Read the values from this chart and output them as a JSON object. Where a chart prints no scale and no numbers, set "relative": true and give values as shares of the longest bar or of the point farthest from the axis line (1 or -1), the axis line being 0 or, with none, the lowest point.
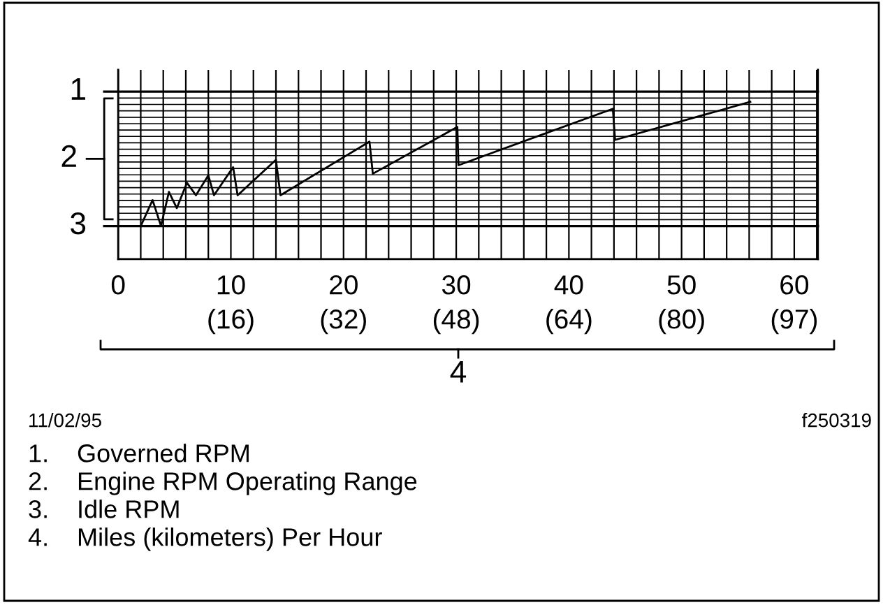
{
  "chart_data": {
    "type": "line",
    "relative": true,
    "color": "#000000",
    "grid": true,
    "marker": "none",
    "line_style": "solid",
    "x": [
      2,
      3.05,
      3.8,
      4.5,
      5.2,
      6.1,
      6.9,
      8.0,
      8.5,
      10.2,
      10.6,
      14.0,
      14.4,
      22.3,
      22.6,
      30.1,
      30.2,
      43.9,
      44.1,
      56.1
    ],
    "values": [
      0.21,
      0.375,
      0.21,
      0.427,
      0.324,
      0.485,
      0.406,
      0.532,
      0.406,
      0.584,
      0.406,
      0.631,
      0.406,
      0.747,
      0.543,
      0.84,
      0.597,
      0.956,
      0.758,
      1.0
    ],
    "xlim": [
      0,
      62.1
    ],
    "xticks": [
      0,
      10,
      20,
      30,
      40,
      50,
      60
    ],
    "xlabel": "4",
    "ref_lines": [
      {
        "axis": "y",
        "value": 1.065
      },
      {
        "axis": "y",
        "value": 0.21
      }
    ],
    "annotations": [
      "1",
      "2",
      "3",
      "(16)",
      "(32)",
      "(48)",
      "(64)",
      "(80)",
      "(97)",
      "11/02/95",
      "f250319",
      "1.\tGoverned RPM",
      "2.\tEngine RPM Operating Range",
      "3.\tIdle RPM",
      "4.\tMiles (kilometers) Per Hour"
    ]
  }
}
